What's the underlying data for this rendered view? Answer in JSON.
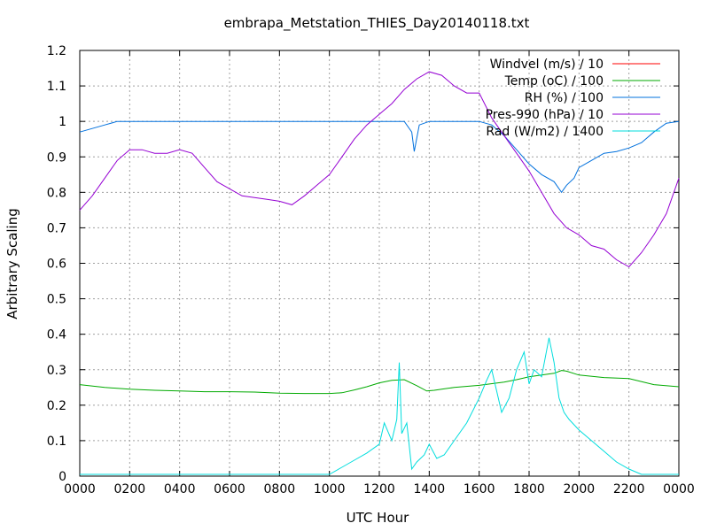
{
  "chart_data": {
    "type": "line",
    "title": "embrapa_Metstation_THIES_Day20140118.txt",
    "xlabel": "UTC Hour",
    "ylabel": "Arbitrary Scaling",
    "xlim": [
      0,
      24
    ],
    "ylim": [
      0,
      1.2
    ],
    "grid": true,
    "legend_position": "top-right",
    "x_ticks": [
      {
        "value": 0,
        "label": "0000"
      },
      {
        "value": 2,
        "label": "0200"
      },
      {
        "value": 4,
        "label": "0400"
      },
      {
        "value": 6,
        "label": "0600"
      },
      {
        "value": 8,
        "label": "0800"
      },
      {
        "value": 10,
        "label": "1000"
      },
      {
        "value": 12,
        "label": "1200"
      },
      {
        "value": 14,
        "label": "1400"
      },
      {
        "value": 16,
        "label": "1600"
      },
      {
        "value": 18,
        "label": "1800"
      },
      {
        "value": 20,
        "label": "2000"
      },
      {
        "value": 22,
        "label": "2200"
      },
      {
        "value": 24,
        "label": "0000"
      }
    ],
    "y_ticks": [
      {
        "value": 0,
        "label": "0"
      },
      {
        "value": 0.1,
        "label": "0.1"
      },
      {
        "value": 0.2,
        "label": "0.2"
      },
      {
        "value": 0.3,
        "label": "0.3"
      },
      {
        "value": 0.4,
        "label": "0.4"
      },
      {
        "value": 0.5,
        "label": "0.5"
      },
      {
        "value": 0.6,
        "label": "0.6"
      },
      {
        "value": 0.7,
        "label": "0.7"
      },
      {
        "value": 0.8,
        "label": "0.8"
      },
      {
        "value": 0.9,
        "label": "0.9"
      },
      {
        "value": 1.0,
        "label": "1"
      },
      {
        "value": 1.1,
        "label": "1.1"
      },
      {
        "value": 1.2,
        "label": "1.2"
      }
    ],
    "series": [
      {
        "name": "Windvel (m/s) / 10",
        "color": "#ff0000",
        "x": [],
        "y": []
      },
      {
        "name": "Temp (oC) / 100",
        "color": "#00aa00",
        "x": [
          0,
          1,
          2,
          3,
          4,
          5,
          6,
          7,
          8,
          9,
          10,
          10.5,
          11,
          11.5,
          12,
          12.5,
          13,
          13.5,
          13.9,
          14.2,
          14.5,
          15,
          16,
          17,
          17.5,
          18,
          18.5,
          19,
          19.3,
          19.5,
          20,
          21,
          22,
          23,
          24
        ],
        "y": [
          0.258,
          0.25,
          0.245,
          0.242,
          0.24,
          0.238,
          0.238,
          0.237,
          0.234,
          0.233,
          0.233,
          0.235,
          0.243,
          0.252,
          0.263,
          0.27,
          0.272,
          0.255,
          0.24,
          0.242,
          0.245,
          0.25,
          0.256,
          0.265,
          0.272,
          0.28,
          0.285,
          0.29,
          0.298,
          0.296,
          0.285,
          0.278,
          0.275,
          0.258,
          0.252
        ]
      },
      {
        "name": "RH (%) / 100",
        "color": "#0070dd",
        "x": [
          0,
          0.5,
          1,
          1.5,
          2,
          4,
          6,
          8,
          10,
          12,
          13,
          13.3,
          13.4,
          13.6,
          14,
          16,
          16.5,
          17,
          17.5,
          18,
          18.5,
          19,
          19.3,
          19.5,
          19.8,
          20,
          20.5,
          21,
          21.5,
          22,
          22.5,
          23,
          23.5,
          24
        ],
        "y": [
          0.97,
          0.98,
          0.99,
          1.0,
          1.0,
          1.0,
          1.0,
          1.0,
          1.0,
          1.0,
          1.0,
          0.97,
          0.915,
          0.99,
          1.0,
          1.0,
          0.99,
          0.96,
          0.92,
          0.88,
          0.85,
          0.83,
          0.8,
          0.82,
          0.84,
          0.87,
          0.89,
          0.91,
          0.915,
          0.925,
          0.94,
          0.97,
          0.995,
          1.0
        ]
      },
      {
        "name": "Pres-990 (hPa) / 10",
        "color": "#9500d3",
        "x": [
          0,
          0.5,
          1,
          1.5,
          2,
          2.5,
          3,
          3.5,
          4,
          4.5,
          5,
          5.5,
          6,
          6.5,
          7,
          7.5,
          8,
          8.5,
          9,
          9.5,
          10,
          10.5,
          11,
          11.5,
          12,
          12.5,
          13,
          13.5,
          14,
          14.5,
          15,
          15.5,
          16,
          16.5,
          17,
          17.5,
          18,
          18.5,
          19,
          19.5,
          20,
          20.5,
          21,
          21.5,
          22,
          22.5,
          23,
          23.5,
          24
        ],
        "y": [
          0.75,
          0.79,
          0.84,
          0.89,
          0.92,
          0.92,
          0.91,
          0.91,
          0.92,
          0.91,
          0.87,
          0.83,
          0.81,
          0.79,
          0.785,
          0.78,
          0.775,
          0.765,
          0.79,
          0.82,
          0.85,
          0.9,
          0.95,
          0.99,
          1.02,
          1.05,
          1.09,
          1.12,
          1.14,
          1.13,
          1.1,
          1.08,
          1.08,
          1.01,
          0.96,
          0.91,
          0.86,
          0.8,
          0.74,
          0.7,
          0.68,
          0.65,
          0.64,
          0.61,
          0.59,
          0.63,
          0.68,
          0.74,
          0.84
        ]
      },
      {
        "name": "Rad (W/m2) / 1400",
        "color": "#00dddd",
        "x": [
          0,
          2,
          4,
          6,
          8,
          10,
          10.5,
          11,
          11.5,
          12,
          12.2,
          12.5,
          12.7,
          12.8,
          12.9,
          13.1,
          13.3,
          13.5,
          13.8,
          14,
          14.3,
          14.6,
          15,
          15.5,
          16,
          16.3,
          16.5,
          16.7,
          16.9,
          17.2,
          17.5,
          17.8,
          18,
          18.2,
          18.5,
          18.8,
          19,
          19.2,
          19.4,
          19.6,
          20,
          20.5,
          21,
          21.5,
          22,
          22.5,
          23,
          24
        ],
        "y": [
          0.005,
          0.005,
          0.005,
          0.005,
          0.005,
          0.005,
          0.025,
          0.045,
          0.065,
          0.09,
          0.15,
          0.1,
          0.16,
          0.32,
          0.12,
          0.15,
          0.02,
          0.04,
          0.06,
          0.09,
          0.05,
          0.06,
          0.1,
          0.15,
          0.22,
          0.27,
          0.3,
          0.24,
          0.18,
          0.22,
          0.3,
          0.35,
          0.26,
          0.3,
          0.28,
          0.39,
          0.32,
          0.22,
          0.18,
          0.16,
          0.13,
          0.1,
          0.07,
          0.04,
          0.02,
          0.005,
          0.005,
          0.005
        ]
      }
    ]
  }
}
